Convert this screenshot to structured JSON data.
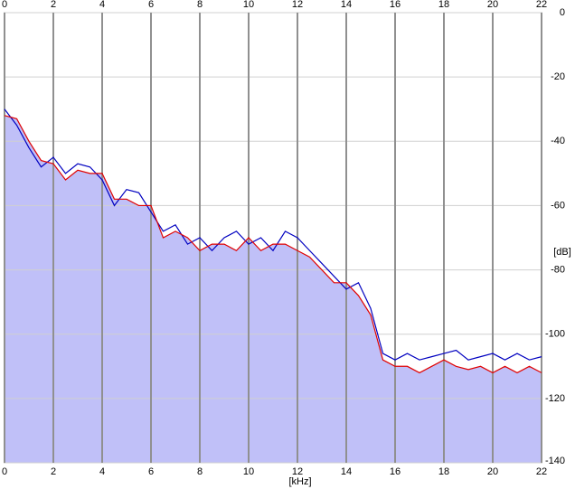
{
  "chart_data": {
    "type": "line",
    "x_label": "[kHz]",
    "y_label": "[dB]",
    "x": [
      0,
      0.5,
      1,
      1.5,
      2,
      2.5,
      3,
      3.5,
      4,
      4.5,
      5,
      5.5,
      6,
      6.5,
      7,
      7.5,
      8,
      8.5,
      9,
      9.5,
      10,
      10.5,
      11,
      11.5,
      12,
      12.5,
      13,
      13.5,
      14,
      14.5,
      15,
      15.5,
      16,
      16.5,
      17,
      17.5,
      18,
      18.5,
      19,
      19.5,
      20,
      20.5,
      21,
      21.5,
      22
    ],
    "series": [
      {
        "color": "#0000c0",
        "values": [
          -30,
          -35,
          -42,
          -48,
          -45,
          -50,
          -47,
          -48,
          -52,
          -60,
          -55,
          -56,
          -62,
          -68,
          -66,
          -72,
          -70,
          -74,
          -70,
          -68,
          -72,
          -70,
          -74,
          -68,
          -70,
          -74,
          -78,
          -82,
          -86,
          -84,
          -92,
          -106,
          -108,
          -106,
          -108,
          -107,
          -106,
          -105,
          -108,
          -107,
          -106,
          -108,
          -106,
          -108,
          -107
        ]
      },
      {
        "color": "#e00000",
        "values": [
          -32,
          -33,
          -40,
          -46,
          -47,
          -52,
          -49,
          -50,
          -50,
          -58,
          -58,
          -60,
          -60,
          -70,
          -68,
          -70,
          -74,
          -72,
          -72,
          -74,
          -70,
          -74,
          -72,
          -72,
          -74,
          -76,
          -80,
          -84,
          -84,
          -88,
          -94,
          -108,
          -110,
          -110,
          -112,
          -110,
          -108,
          -110,
          -111,
          -110,
          -112,
          -110,
          -112,
          -110,
          -112
        ]
      }
    ],
    "area_color": "#c0c0f8",
    "xlim": [
      0,
      22
    ],
    "xticks": [
      0,
      2,
      4,
      6,
      8,
      10,
      12,
      14,
      16,
      18,
      20,
      22
    ],
    "ylim": [
      -140,
      0
    ],
    "yticks": [
      0,
      -20,
      -40,
      -60,
      -80,
      -100,
      -120,
      -140
    ],
    "grid": true
  }
}
